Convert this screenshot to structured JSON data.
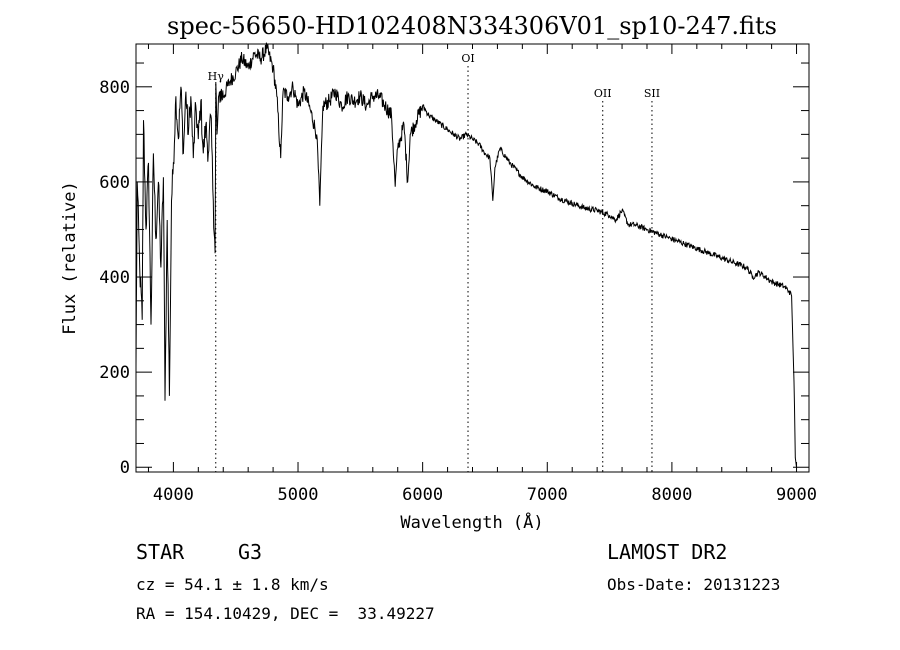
{
  "chart_data": {
    "type": "line",
    "title": "spec-56650-HD102408N334306V01_sp10-247.fits",
    "xlabel": "Wavelength (Å)",
    "ylabel": "Flux (relative)",
    "xlim": [
      3700,
      9100
    ],
    "ylim": [
      -10,
      890
    ],
    "x_ticks": [
      4000,
      5000,
      6000,
      7000,
      8000,
      9000
    ],
    "x_tick_labels": [
      "4000",
      "5000",
      "6000",
      "7000",
      "8000",
      "9000"
    ],
    "y_ticks": [
      0,
      200,
      400,
      600,
      800
    ],
    "y_tick_labels": [
      "0",
      "200",
      "400",
      "600",
      "800"
    ],
    "grid": false,
    "line_color": "#000000",
    "annotations": [
      {
        "label": "Hγ",
        "x": 4340
      },
      {
        "label": "OI",
        "x": 6364
      },
      {
        "label": "OII",
        "x": 7445
      },
      {
        "label": "SII",
        "x": 7840
      }
    ],
    "series": [
      {
        "x": [
          3700,
          3710,
          3730,
          3750,
          3760,
          3780,
          3800,
          3820,
          3840,
          3860,
          3880,
          3900,
          3920,
          3933,
          3950,
          3968,
          3985,
          4000,
          4020,
          4040,
          4060,
          4080,
          4100,
          4120,
          4140,
          4160,
          4180,
          4200,
          4220,
          4240,
          4260,
          4280,
          4300,
          4320,
          4335,
          4340,
          4350,
          4370,
          4400,
          4450,
          4500,
          4550,
          4600,
          4650,
          4700,
          4750,
          4800,
          4830,
          4861,
          4880,
          4920,
          4960,
          5000,
          5050,
          5100,
          5150,
          5175,
          5200,
          5250,
          5300,
          5350,
          5400,
          5450,
          5500,
          5550,
          5600,
          5650,
          5700,
          5750,
          5780,
          5800,
          5850,
          5880,
          5900,
          5950,
          6000,
          6050,
          6100,
          6150,
          6200,
          6250,
          6300,
          6350,
          6400,
          6450,
          6500,
          6540,
          6563,
          6580,
          6620,
          6700,
          6800,
          6900,
          7000,
          7100,
          7200,
          7300,
          7400,
          7500,
          7550,
          7600,
          7650,
          7700,
          7800,
          7900,
          8000,
          8100,
          8200,
          8300,
          8400,
          8500,
          8600,
          8650,
          8700,
          8800,
          8900,
          8940,
          8960,
          8980,
          8990,
          9000
        ],
        "y": [
          210,
          600,
          420,
          310,
          730,
          500,
          640,
          300,
          660,
          480,
          600,
          420,
          610,
          140,
          520,
          150,
          560,
          640,
          780,
          690,
          800,
          660,
          790,
          700,
          780,
          650,
          760,
          690,
          770,
          660,
          720,
          660,
          740,
          560,
          450,
          810,
          700,
          790,
          780,
          810,
          830,
          860,
          840,
          870,
          860,
          880,
          840,
          780,
          650,
          790,
          780,
          800,
          760,
          790,
          750,
          700,
          550,
          760,
          770,
          790,
          760,
          780,
          770,
          780,
          760,
          780,
          780,
          760,
          740,
          590,
          670,
          720,
          600,
          700,
          730,
          760,
          740,
          730,
          720,
          710,
          700,
          690,
          700,
          690,
          680,
          660,
          650,
          560,
          630,
          670,
          640,
          610,
          590,
          580,
          565,
          555,
          545,
          540,
          530,
          520,
          540,
          510,
          510,
          500,
          490,
          480,
          470,
          460,
          450,
          440,
          430,
          420,
          400,
          410,
          390,
          380,
          370,
          360,
          180,
          20,
          0
        ]
      }
    ]
  },
  "info": {
    "class_label": "STAR",
    "subclass": "G3",
    "survey": "LAMOST DR2",
    "cz_text": "cz = 54.1 ± 1.8 km/s",
    "obs_date": "Obs-Date: 20131223",
    "coords": "RA = 154.10429, DEC =  33.49227"
  }
}
